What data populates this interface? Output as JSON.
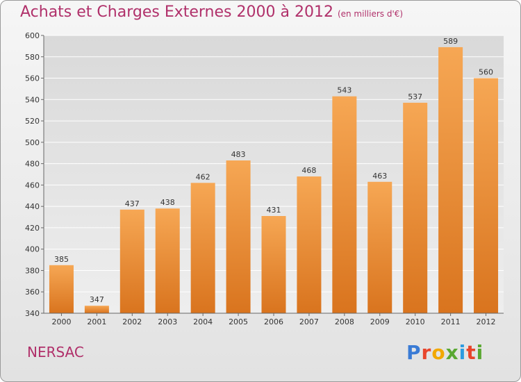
{
  "header": {
    "title": "Achats et Charges Externes 2000 à 2012",
    "subtitle": "(en milliers d'€)"
  },
  "commune": "NERSAC",
  "logo": {
    "text": "Proxiti",
    "letter_colors": [
      "#3a7bd5",
      "#e8452c",
      "#f2a800",
      "#5aa832",
      "#2c9be0",
      "#e8452c",
      "#5aa832"
    ]
  },
  "colors": {
    "bar_top": "#f6a754",
    "bar_bottom": "#d9741e",
    "grid": "#ffffff",
    "title": "#b0306a"
  },
  "chart_data": {
    "type": "bar",
    "categories": [
      "2000",
      "2001",
      "2002",
      "2003",
      "2004",
      "2005",
      "2006",
      "2007",
      "2008",
      "2009",
      "2010",
      "2011",
      "2012"
    ],
    "values": [
      385,
      347,
      437,
      438,
      462,
      483,
      431,
      468,
      543,
      463,
      537,
      589,
      560
    ],
    "title": "Achats et Charges Externes 2000 à 2012",
    "ylim": [
      340,
      600
    ],
    "yticks": [
      340,
      360,
      380,
      400,
      420,
      440,
      460,
      480,
      500,
      520,
      540,
      560,
      580,
      600
    ],
    "grid": true
  }
}
